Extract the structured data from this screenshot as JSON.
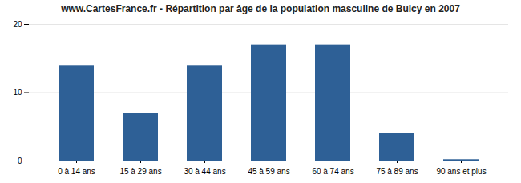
{
  "chart_data": {
    "type": "bar",
    "title": "www.CartesFrance.fr - Répartition par âge de la population masculine de Bulcy en 2007",
    "categories": [
      "0 à 14 ans",
      "15 à 29 ans",
      "30 à 44 ans",
      "45 à 59 ans",
      "60 à 74 ans",
      "75 à 89 ans",
      "90 ans et plus"
    ],
    "values": [
      14,
      7,
      14,
      17,
      17,
      4,
      0.2
    ],
    "color": "#2e6096",
    "ylim": [
      0,
      20
    ],
    "yticks": [
      0,
      10,
      20
    ],
    "grid": true
  }
}
